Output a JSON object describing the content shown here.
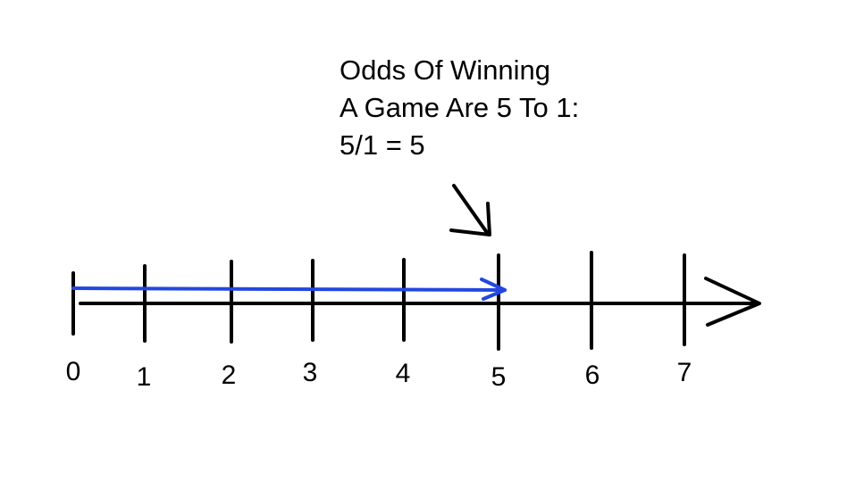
{
  "annotation": {
    "lines": [
      "Odds Of Winning",
      "A Game Are 5 To 1:",
      "5/1 = 5"
    ]
  },
  "number_line": {
    "ticks": [
      "0",
      "1",
      "2",
      "3",
      "4",
      "5",
      "6",
      "7"
    ],
    "highlight_value": 5,
    "highlight_color": "#2347e0",
    "line_color": "#000000"
  }
}
